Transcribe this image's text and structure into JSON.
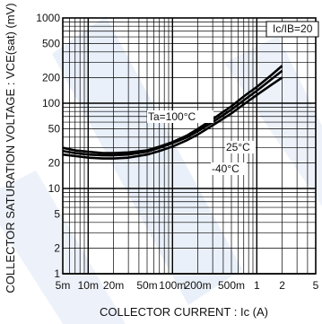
{
  "chart_data": {
    "type": "line",
    "title": "",
    "xlabel": "COLLECTOR CURRENT : Ic (A)",
    "ylabel": "COLLECTOR SATURATION VOLTAGE : VCE(sat) (mV)",
    "x_scale": "log",
    "y_scale": "log",
    "xlim": [
      0.005,
      5
    ],
    "ylim": [
      1,
      1000
    ],
    "grid": true,
    "x_ticks": [
      {
        "value": 0.005,
        "label": "5m"
      },
      {
        "value": 0.01,
        "label": "10m"
      },
      {
        "value": 0.02,
        "label": "20m"
      },
      {
        "value": 0.05,
        "label": "50m"
      },
      {
        "value": 0.1,
        "label": "100m"
      },
      {
        "value": 0.2,
        "label": "200m"
      },
      {
        "value": 0.5,
        "label": "500m"
      },
      {
        "value": 1,
        "label": "1"
      },
      {
        "value": 2,
        "label": "2"
      },
      {
        "value": 5,
        "label": "5"
      }
    ],
    "y_ticks": [
      {
        "value": 1,
        "label": "1"
      },
      {
        "value": 2,
        "label": "2"
      },
      {
        "value": 5,
        "label": "5"
      },
      {
        "value": 10,
        "label": "10"
      },
      {
        "value": 20,
        "label": "20"
      },
      {
        "value": 50,
        "label": "50"
      },
      {
        "value": 100,
        "label": "100"
      },
      {
        "value": 200,
        "label": "200"
      },
      {
        "value": 500,
        "label": "500"
      },
      {
        "value": 1000,
        "label": "1000"
      }
    ],
    "condition_label": "Ic/IB=20",
    "series": [
      {
        "name": "Ta=100°C",
        "x": [
          0.005,
          0.007,
          0.01,
          0.015,
          0.02,
          0.03,
          0.05,
          0.07,
          0.1,
          0.15,
          0.2,
          0.3,
          0.5,
          0.7,
          1,
          1.5,
          2
        ],
        "y": [
          30,
          28,
          27,
          26,
          26,
          26.5,
          28,
          31,
          35,
          42,
          50,
          65,
          92,
          120,
          155,
          215,
          275
        ]
      },
      {
        "name": "25°C",
        "x": [
          0.005,
          0.007,
          0.01,
          0.015,
          0.02,
          0.03,
          0.05,
          0.07,
          0.1,
          0.15,
          0.2,
          0.3,
          0.5,
          0.7,
          1,
          1.5,
          2
        ],
        "y": [
          27.5,
          26,
          25,
          24.5,
          24.5,
          25,
          27,
          30,
          34,
          40,
          47,
          60,
          84,
          108,
          140,
          192,
          240
        ]
      },
      {
        "name": "-40°C",
        "x": [
          0.005,
          0.007,
          0.01,
          0.015,
          0.02,
          0.03,
          0.05,
          0.07,
          0.1,
          0.15,
          0.2,
          0.3,
          0.5,
          0.7,
          1,
          1.5,
          2
        ],
        "y": [
          25,
          24,
          23,
          22.5,
          22.5,
          23,
          25,
          27.5,
          31,
          37,
          43,
          55,
          76,
          97,
          125,
          165,
          200
        ]
      }
    ],
    "annotations": [
      "Ta=100°C",
      "25°C",
      "-40°C"
    ]
  }
}
